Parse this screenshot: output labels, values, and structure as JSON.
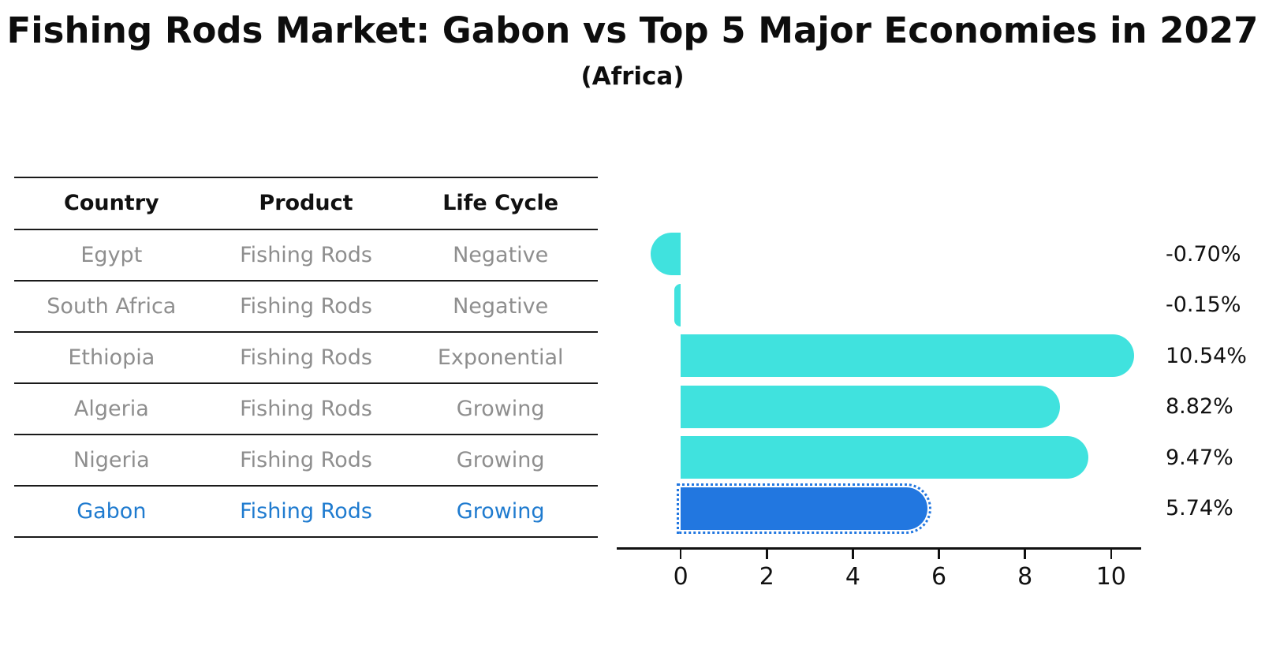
{
  "header": {
    "title": "Fishing Rods Market: Gabon vs Top 5 Major Economies in 2027",
    "subtitle": "(Africa)"
  },
  "table": {
    "headers": [
      "Country",
      "Product",
      "Life Cycle"
    ],
    "rows": [
      {
        "country": "Egypt",
        "product": "Fishing Rods",
        "life_cycle": "Negative"
      },
      {
        "country": "South Africa",
        "product": "Fishing Rods",
        "life_cycle": "Negative"
      },
      {
        "country": "Ethiopia",
        "product": "Fishing Rods",
        "life_cycle": "Exponential"
      },
      {
        "country": "Algeria",
        "product": "Fishing Rods",
        "life_cycle": "Growing"
      },
      {
        "country": "Nigeria",
        "product": "Fishing Rods",
        "life_cycle": "Growing"
      },
      {
        "country": "Gabon",
        "product": "Fishing Rods",
        "life_cycle": "Growing"
      }
    ],
    "highlight_row_index": 5
  },
  "chart_data": {
    "type": "bar",
    "orientation": "horizontal",
    "title": "Fishing Rods Market: Gabon vs Top 5 Major Economies in 2027",
    "subtitle": "(Africa)",
    "categories": [
      "Egypt",
      "South Africa",
      "Ethiopia",
      "Algeria",
      "Nigeria",
      "Gabon"
    ],
    "values": [
      -0.7,
      -0.15,
      10.54,
      8.82,
      9.47,
      5.74
    ],
    "value_labels": [
      "-0.70%",
      "-0.15%",
      "10.54%",
      "8.82%",
      "9.47%",
      "5.74%"
    ],
    "unit": "percent",
    "x_ticks": [
      0,
      2,
      4,
      6,
      8,
      10
    ],
    "xlim": [
      -1.25,
      10.7
    ],
    "grid": false,
    "legend": false,
    "bar_color": "#40E2DE",
    "highlight_color": "#2277E0",
    "highlight_index": 5
  },
  "colors": {
    "bar_cyan": "#40E2DE",
    "bar_blue": "#2277E0",
    "highlight_text": "#1F7BCF",
    "table_text": "#8E8E8E",
    "heading_text": "#111111",
    "line": "#1a1a1a"
  }
}
